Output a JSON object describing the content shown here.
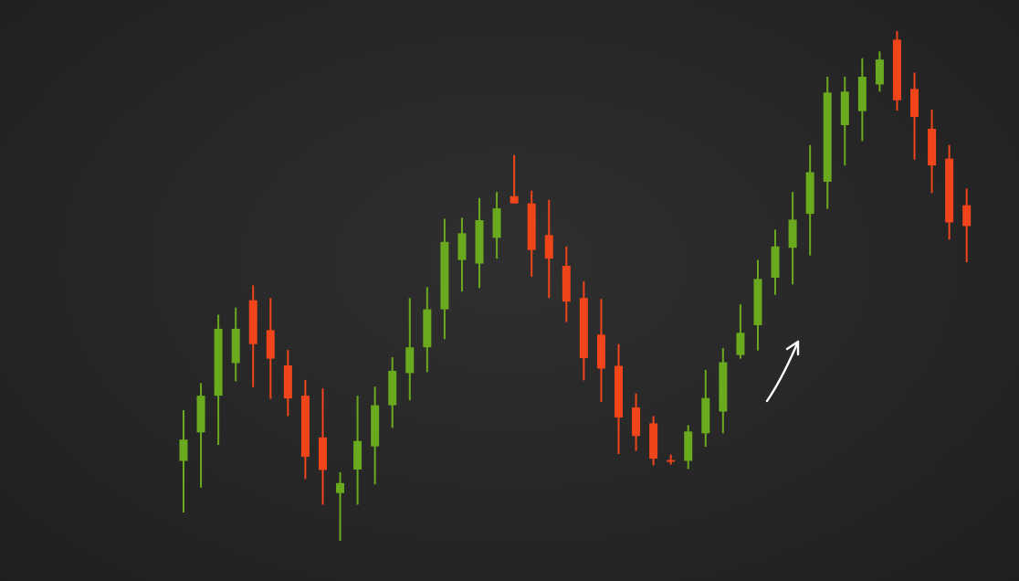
{
  "colors": {
    "background": "#262626",
    "bullish": "#6aaa1e",
    "bearish": "#f0441a",
    "arrow": "#ffffff"
  },
  "chart_data": {
    "type": "candlestick",
    "title": "",
    "xlabel": "",
    "ylabel": "",
    "axes_visible": false,
    "grid": false,
    "ylim": [
      0,
      100
    ],
    "candles": [
      {
        "open": 21.7,
        "close": 26.4,
        "high": 32.9,
        "low": 10.3,
        "dir": "up"
      },
      {
        "open": 28.0,
        "close": 36.1,
        "high": 38.9,
        "low": 15.8,
        "dir": "up"
      },
      {
        "open": 36.1,
        "close": 50.9,
        "high": 54.0,
        "low": 25.2,
        "dir": "up"
      },
      {
        "open": 43.3,
        "close": 50.9,
        "high": 55.6,
        "low": 39.3,
        "dir": "up"
      },
      {
        "open": 57.2,
        "close": 47.5,
        "high": 60.5,
        "low": 38.0,
        "dir": "down"
      },
      {
        "open": 50.6,
        "close": 44.3,
        "high": 57.7,
        "low": 35.4,
        "dir": "down"
      },
      {
        "open": 42.8,
        "close": 35.5,
        "high": 46.2,
        "low": 31.6,
        "dir": "down"
      },
      {
        "open": 36.1,
        "close": 22.6,
        "high": 39.6,
        "low": 17.7,
        "dir": "down"
      },
      {
        "open": 26.9,
        "close": 19.7,
        "high": 37.7,
        "low": 12.0,
        "dir": "down"
      },
      {
        "open": 14.6,
        "close": 16.8,
        "high": 19.2,
        "low": 4.0,
        "dir": "up"
      },
      {
        "open": 19.8,
        "close": 26.1,
        "high": 36.1,
        "low": 12.0,
        "dir": "up"
      },
      {
        "open": 24.9,
        "close": 34.0,
        "high": 38.1,
        "low": 16.5,
        "dir": "up"
      },
      {
        "open": 34.0,
        "close": 41.6,
        "high": 44.6,
        "low": 29.0,
        "dir": "up"
      },
      {
        "open": 41.1,
        "close": 46.8,
        "high": 57.7,
        "low": 35.1,
        "dir": "up"
      },
      {
        "open": 46.8,
        "close": 55.2,
        "high": 60.1,
        "low": 41.3,
        "dir": "up"
      },
      {
        "open": 55.2,
        "close": 70.1,
        "high": 75.2,
        "low": 48.6,
        "dir": "up"
      },
      {
        "open": 66.1,
        "close": 72.0,
        "high": 75.4,
        "low": 59.1,
        "dir": "up"
      },
      {
        "open": 65.3,
        "close": 74.9,
        "high": 79.8,
        "low": 59.9,
        "dir": "up"
      },
      {
        "open": 71.0,
        "close": 77.5,
        "high": 81.1,
        "low": 66.4,
        "dir": "up"
      },
      {
        "open": 80.2,
        "close": 78.6,
        "high": 89.3,
        "low": 78.6,
        "dir": "down"
      },
      {
        "open": 78.6,
        "close": 68.3,
        "high": 81.4,
        "low": 62.4,
        "dir": "down"
      },
      {
        "open": 71.6,
        "close": 66.4,
        "high": 79.4,
        "low": 57.7,
        "dir": "down"
      },
      {
        "open": 64.8,
        "close": 56.9,
        "high": 69.1,
        "low": 52.4,
        "dir": "down"
      },
      {
        "open": 57.7,
        "close": 44.4,
        "high": 61.4,
        "low": 39.5,
        "dir": "down"
      },
      {
        "open": 49.6,
        "close": 42.1,
        "high": 57.5,
        "low": 34.7,
        "dir": "down"
      },
      {
        "open": 42.7,
        "close": 31.3,
        "high": 47.5,
        "low": 23.2,
        "dir": "down"
      },
      {
        "open": 33.5,
        "close": 27.2,
        "high": 36.6,
        "low": 23.9,
        "dir": "down"
      },
      {
        "open": 30.0,
        "close": 22.2,
        "high": 31.6,
        "low": 20.7,
        "dir": "down"
      },
      {
        "open": 21.9,
        "close": 21.5,
        "high": 23.1,
        "low": 20.9,
        "dir": "down"
      },
      {
        "open": 21.7,
        "close": 28.2,
        "high": 29.6,
        "low": 19.9,
        "dir": "up"
      },
      {
        "open": 27.8,
        "close": 35.6,
        "high": 41.8,
        "low": 24.8,
        "dir": "up"
      },
      {
        "open": 32.6,
        "close": 43.5,
        "high": 46.6,
        "low": 27.8,
        "dir": "up"
      },
      {
        "open": 45.1,
        "close": 50.0,
        "high": 56.3,
        "low": 44.3,
        "dir": "up"
      },
      {
        "open": 51.7,
        "close": 61.9,
        "high": 66.1,
        "low": 46.1,
        "dir": "up"
      },
      {
        "open": 62.2,
        "close": 69.1,
        "high": 72.8,
        "low": 58.4,
        "dir": "up"
      },
      {
        "open": 68.8,
        "close": 75.0,
        "high": 81.1,
        "low": 60.7,
        "dir": "up"
      },
      {
        "open": 76.3,
        "close": 85.5,
        "high": 91.5,
        "low": 67.1,
        "dir": "up"
      },
      {
        "open": 83.4,
        "close": 103.1,
        "high": 106.6,
        "low": 77.4,
        "dir": "up"
      },
      {
        "open": 95.9,
        "close": 103.3,
        "high": 106.6,
        "low": 87.0,
        "dir": "up"
      },
      {
        "open": 99.0,
        "close": 106.6,
        "high": 110.7,
        "low": 92.4,
        "dir": "up"
      },
      {
        "open": 104.9,
        "close": 110.4,
        "high": 112.2,
        "low": 103.3,
        "dir": "up"
      },
      {
        "open": 114.8,
        "close": 101.4,
        "high": 116.7,
        "low": 99.1,
        "dir": "down"
      },
      {
        "open": 103.9,
        "close": 97.7,
        "high": 107.5,
        "low": 88.3,
        "dir": "down"
      },
      {
        "open": 95.1,
        "close": 87.0,
        "high": 99.3,
        "low": 80.9,
        "dir": "down"
      },
      {
        "open": 88.5,
        "close": 74.4,
        "high": 91.5,
        "low": 70.6,
        "dir": "down"
      },
      {
        "open": 78.2,
        "close": 73.6,
        "high": 81.9,
        "low": 65.6,
        "dir": "down"
      }
    ]
  },
  "annotation": {
    "arrow_icon": "trend-up-arrow"
  }
}
